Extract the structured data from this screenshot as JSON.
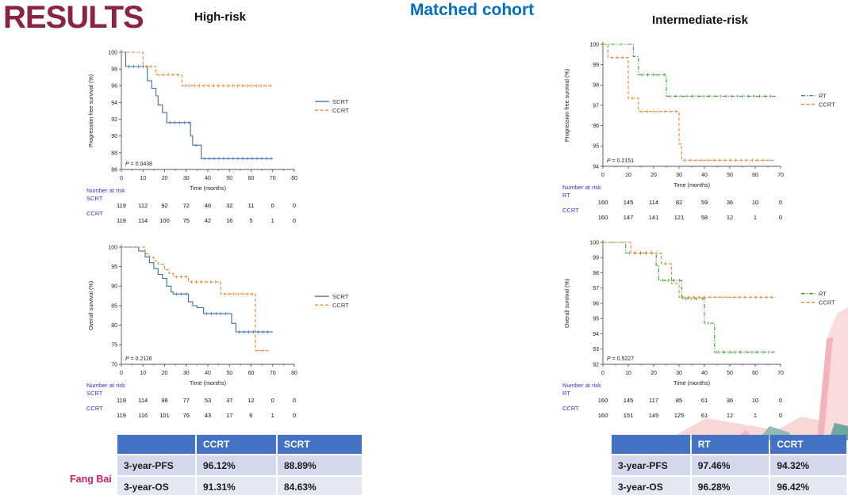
{
  "slide": {
    "title": "RESULTS",
    "cohort_label": "Matched cohort",
    "left_heading": "High-risk",
    "right_heading": "Intermediate-risk",
    "author": "Fang Bai"
  },
  "colors": {
    "title_maroon": "#8B2346",
    "cohort_blue": "#0070C0",
    "scrt_blue": "#3C6FA8",
    "ccrt_orange": "#E8832C",
    "rt_green": "#33A02C",
    "risk_label_blue": "#3333CC",
    "table_header_blue": "#4472C4"
  },
  "chart_data": [
    {
      "id": "high-risk-pfs",
      "type": "line",
      "subtype": "kaplan-meier-step",
      "group": "High-risk",
      "ylabel": "Progression free survival (%)",
      "xlabel": "Time (months)",
      "ylim": [
        86,
        100
      ],
      "ytick_step": 2,
      "xlim": [
        0,
        80
      ],
      "xtick_step": 10,
      "p_value": "P = 0.0438",
      "legend_position": "right",
      "series": [
        {
          "name": "SCRT",
          "color": "#3C6FA8",
          "style": "solid",
          "steps": [
            [
              0,
              100
            ],
            [
              2,
              98.3
            ],
            [
              12,
              96.6
            ],
            [
              14,
              95.7
            ],
            [
              16,
              94.8
            ],
            [
              17,
              93.7
            ],
            [
              19,
              92.8
            ],
            [
              21,
              91.6
            ],
            [
              32,
              90.0
            ],
            [
              33,
              88.9
            ],
            [
              37,
              87.3
            ],
            [
              70,
              87.3
            ]
          ]
        },
        {
          "name": "CCRT",
          "color": "#E8832C",
          "style": "dashed",
          "steps": [
            [
              0,
              100
            ],
            [
              10,
              98.3
            ],
            [
              16,
              97.3
            ],
            [
              28,
              96.0
            ],
            [
              70,
              96.0
            ]
          ]
        }
      ],
      "number_at_risk": {
        "label": "Number at risk",
        "rows": [
          {
            "name": "SCRT",
            "values": [
              119,
              112,
              92,
              72,
              46,
              32,
              11,
              0,
              0
            ]
          },
          {
            "name": "CCRT",
            "values": [
              119,
              114,
              100,
              75,
              42,
              16,
              5,
              1,
              0
            ]
          }
        ]
      }
    },
    {
      "id": "high-risk-os",
      "type": "line",
      "subtype": "kaplan-meier-step",
      "group": "High-risk",
      "ylabel": "Overall survival (%)",
      "xlabel": "Time (months)",
      "ylim": [
        70,
        100
      ],
      "ytick_step": 5,
      "xlim": [
        0,
        80
      ],
      "xtick_step": 10,
      "p_value": "P = 0.2116",
      "legend_position": "right",
      "series": [
        {
          "name": "SCRT",
          "color": "#3C6FA8",
          "style": "solid",
          "steps": [
            [
              0,
              100
            ],
            [
              8,
              99.0
            ],
            [
              11,
              97.5
            ],
            [
              13,
              96.0
            ],
            [
              15,
              94.5
            ],
            [
              17,
              93.0
            ],
            [
              19,
              92.0
            ],
            [
              21,
              90.0
            ],
            [
              23,
              88.5
            ],
            [
              24,
              88.0
            ],
            [
              31,
              86.0
            ],
            [
              33,
              85.0
            ],
            [
              35,
              84.5
            ],
            [
              38,
              83.0
            ],
            [
              51,
              80.5
            ],
            [
              53,
              78.3
            ],
            [
              70,
              78.3
            ]
          ]
        },
        {
          "name": "CCRT",
          "color": "#E8832C",
          "style": "dashed",
          "steps": [
            [
              0,
              100
            ],
            [
              11,
              98.3
            ],
            [
              13,
              97.4
            ],
            [
              15,
              96.5
            ],
            [
              17,
              95.6
            ],
            [
              20,
              94.2
            ],
            [
              22,
              93.3
            ],
            [
              24,
              92.4
            ],
            [
              31,
              91.1
            ],
            [
              46,
              88.0
            ],
            [
              62,
              73.5
            ],
            [
              68,
              73.5
            ]
          ]
        }
      ],
      "number_at_risk": {
        "label": "Number at risk",
        "rows": [
          {
            "name": "SCRT",
            "values": [
              119,
              114,
              98,
              77,
              53,
              37,
              12,
              0,
              0
            ]
          },
          {
            "name": "CCRT",
            "values": [
              119,
              116,
              101,
              76,
              43,
              17,
              6,
              1,
              0
            ]
          }
        ]
      }
    },
    {
      "id": "intermediate-risk-pfs",
      "type": "line",
      "subtype": "kaplan-meier-step",
      "group": "Intermediate-risk",
      "ylabel": "Progression free survival (%)",
      "xlabel": "Time (months)",
      "ylim": [
        94,
        100
      ],
      "ytick_step": 1,
      "xlim": [
        0,
        70
      ],
      "xtick_step": 10,
      "p_value": "P = 0.2151",
      "legend_position": "right",
      "series": [
        {
          "name": "RT",
          "color": "#33A02C",
          "style": "dashdot",
          "steps": [
            [
              0,
              100
            ],
            [
              12,
              99.4
            ],
            [
              14,
              98.5
            ],
            [
              25,
              97.45
            ],
            [
              68,
              97.45
            ]
          ]
        },
        {
          "name": "CCRT",
          "color": "#E8832C",
          "style": "dashed",
          "steps": [
            [
              0,
              100
            ],
            [
              2,
              99.35
            ],
            [
              10,
              97.35
            ],
            [
              14,
              96.7
            ],
            [
              30,
              95.1
            ],
            [
              31,
              94.3
            ],
            [
              68,
              94.3
            ]
          ]
        }
      ],
      "number_at_risk": {
        "label": "Number at risk",
        "rows": [
          {
            "name": "RT",
            "values": [
              160,
              145,
              114,
              82,
              59,
              36,
              10,
              0
            ]
          },
          {
            "name": "CCRT",
            "values": [
              160,
              147,
              141,
              121,
              58,
              12,
              1,
              0
            ]
          }
        ]
      }
    },
    {
      "id": "intermediate-risk-os",
      "type": "line",
      "subtype": "kaplan-meier-step",
      "group": "Intermediate-risk",
      "ylabel": "Overall survival (%)",
      "xlabel": "Time (months)",
      "ylim": [
        92,
        100
      ],
      "ytick_step": 1,
      "xlim": [
        0,
        70
      ],
      "xtick_step": 10,
      "p_value": "P = 0.5227",
      "legend_position": "right",
      "series": [
        {
          "name": "RT",
          "color": "#33A02C",
          "style": "dashdot",
          "steps": [
            [
              0,
              100
            ],
            [
              9,
              99.3
            ],
            [
              21,
              98.5
            ],
            [
              22,
              97.5
            ],
            [
              31,
              96.3
            ],
            [
              40,
              94.7
            ],
            [
              44,
              92.8
            ],
            [
              68,
              92.8
            ]
          ]
        },
        {
          "name": "CCRT",
          "color": "#E8832C",
          "style": "dashed",
          "steps": [
            [
              0,
              100
            ],
            [
              11,
              99.3
            ],
            [
              23,
              98.6
            ],
            [
              27,
              97.3
            ],
            [
              30,
              96.4
            ],
            [
              68,
              96.4
            ]
          ]
        }
      ],
      "number_at_risk": {
        "label": "Number at risk",
        "rows": [
          {
            "name": "RT",
            "values": [
              160,
              145,
              117,
              85,
              61,
              36,
              10,
              0
            ]
          },
          {
            "name": "CCRT",
            "values": [
              160,
              151,
              145,
              125,
              61,
              12,
              1,
              0
            ]
          }
        ]
      }
    }
  ],
  "tables": {
    "left": {
      "headers": [
        "",
        "CCRT",
        "SCRT"
      ],
      "rows": [
        [
          "3-year-PFS",
          "96.12%",
          "88.89%"
        ],
        [
          "3-year-OS",
          "91.31%",
          "84.63%"
        ]
      ]
    },
    "right": {
      "headers": [
        "",
        "RT",
        "CCRT"
      ],
      "rows": [
        [
          "3-year-PFS",
          "97.46%",
          "94.32%"
        ],
        [
          "3-year-OS",
          "96.28%",
          "96.42%"
        ]
      ]
    }
  }
}
